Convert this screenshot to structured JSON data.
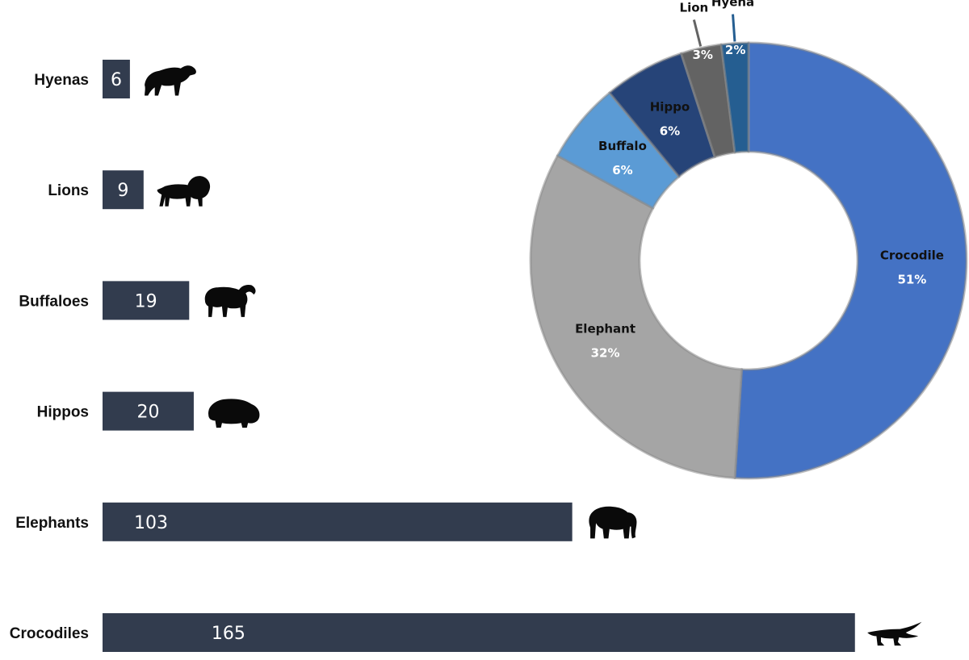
{
  "chart_data": [
    {
      "type": "bar",
      "orientation": "horizontal",
      "categories": [
        "Hyenas",
        "Lions",
        "Buffaloes",
        "Hippos",
        "Elephants",
        "Crocodiles"
      ],
      "values": [
        6,
        9,
        19,
        20,
        103,
        165
      ],
      "value_labels": [
        "6",
        "9",
        "19",
        "20",
        "103",
        "165"
      ],
      "icons": [
        "hyena-icon",
        "lion-icon",
        "buffalo-icon",
        "hippo-icon",
        "elephant-icon",
        "crocodile-icon"
      ],
      "bar_color": "#323c4e",
      "xlim": [
        0,
        170
      ],
      "grid": false,
      "legend": "none"
    },
    {
      "type": "pie",
      "style": "donut",
      "slices": [
        {
          "label": "Crocodile",
          "value": 51,
          "pct_label": "51%",
          "color": "#4472c4"
        },
        {
          "label": "Elephant",
          "value": 32,
          "pct_label": "32%",
          "color": "#a5a5a5"
        },
        {
          "label": "Buffalo",
          "value": 6,
          "pct_label": "6%",
          "color": "#5b9bd5"
        },
        {
          "label": "Hippo",
          "value": 6,
          "pct_label": "6%",
          "color": "#264478"
        },
        {
          "label": "Lion",
          "value": 3,
          "pct_label": "3%",
          "color": "#636363"
        },
        {
          "label": "Hyena",
          "value": 2,
          "pct_label": "2%",
          "color": "#255e91"
        }
      ],
      "legend": "none"
    }
  ]
}
